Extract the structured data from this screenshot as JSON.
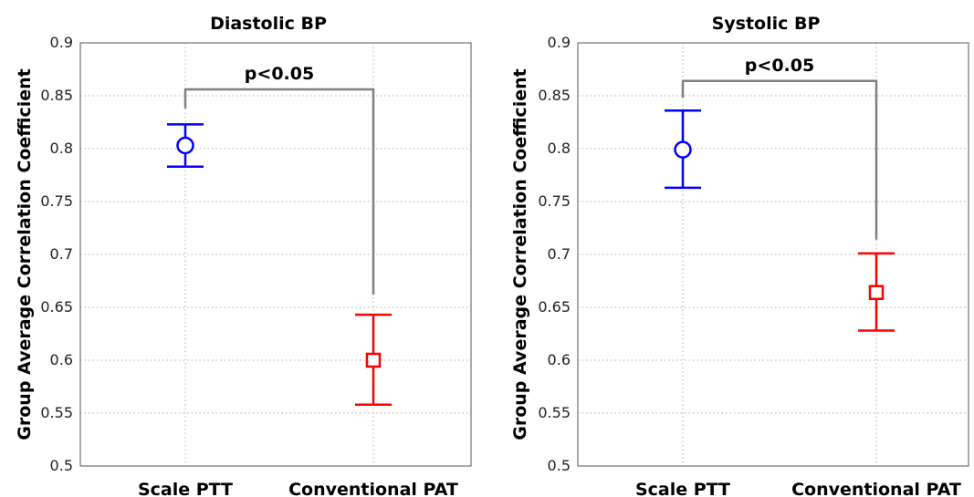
{
  "chart_data": [
    {
      "type": "scatter",
      "title": "Diastolic BP",
      "ylabel": "Group Average Correlation Coefficient",
      "xlabel": "",
      "categories": [
        "Scale PTT",
        "Conventional PAT"
      ],
      "ylim": [
        0.5,
        0.9
      ],
      "yticks": [
        "0.5",
        "0.55",
        "0.6",
        "0.65",
        "0.7",
        "0.75",
        "0.8",
        "0.85",
        "0.9"
      ],
      "grid": true,
      "series": [
        {
          "marker": "circle",
          "color": "#0000ff",
          "value": 0.803,
          "lower": 0.783,
          "upper": 0.823
        },
        {
          "marker": "square",
          "color": "#ff0000",
          "value": 0.6,
          "lower": 0.558,
          "upper": 0.643
        }
      ],
      "significance": {
        "label": "p<0.05",
        "bracket_y": 0.856,
        "left_end": 0.838,
        "right_end": 0.662
      }
    },
    {
      "type": "scatter",
      "title": "Systolic BP",
      "ylabel": "Group Average Correlation Coefficient",
      "xlabel": "",
      "categories": [
        "Scale PTT",
        "Conventional PAT"
      ],
      "ylim": [
        0.5,
        0.9
      ],
      "yticks": [
        "0.5",
        "0.55",
        "0.6",
        "0.65",
        "0.7",
        "0.75",
        "0.8",
        "0.85",
        "0.9"
      ],
      "grid": true,
      "series": [
        {
          "marker": "circle",
          "color": "#0000ff",
          "value": 0.799,
          "lower": 0.763,
          "upper": 0.836
        },
        {
          "marker": "square",
          "color": "#ff0000",
          "value": 0.664,
          "lower": 0.628,
          "upper": 0.701
        }
      ],
      "significance": {
        "label": "p<0.05",
        "bracket_y": 0.864,
        "left_end": 0.848,
        "right_end": 0.714
      }
    }
  ]
}
